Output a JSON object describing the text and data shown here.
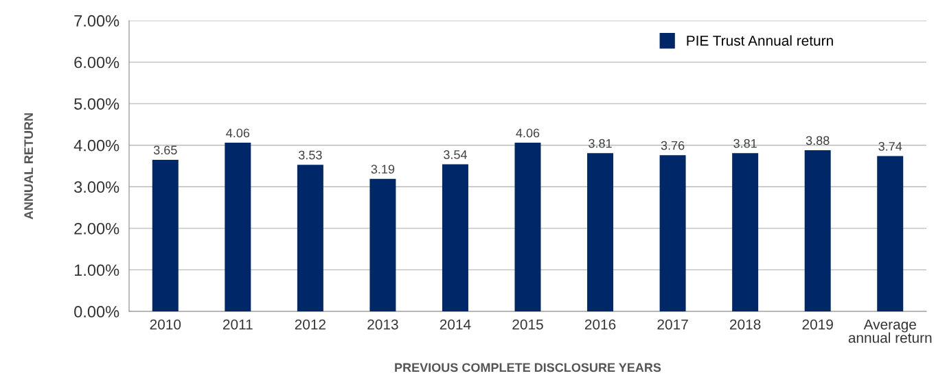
{
  "chart_data": {
    "type": "bar",
    "xlabel": "PREVIOUS COMPLETE DISCLOSURE YEARS",
    "ylabel": "ANNUAL RETURN",
    "categories": [
      "2010",
      "2011",
      "2012",
      "2013",
      "2014",
      "2015",
      "2016",
      "2017",
      "2018",
      "2019",
      "Average\nannual return"
    ],
    "series": [
      {
        "name": "PIE Trust Annual return",
        "color": "#002868",
        "values": [
          3.65,
          4.06,
          3.53,
          3.19,
          3.54,
          4.06,
          3.81,
          3.76,
          3.81,
          3.88,
          3.74
        ]
      }
    ],
    "data_labels": true,
    "ylim": [
      0,
      7
    ],
    "yticks": [
      {
        "value": 0,
        "label": "0.00%"
      },
      {
        "value": 1,
        "label": "1.00%"
      },
      {
        "value": 2,
        "label": "2.00%"
      },
      {
        "value": 3,
        "label": "3.00%"
      },
      {
        "value": 4,
        "label": "4.00%"
      },
      {
        "value": 5,
        "label": "5.00%"
      },
      {
        "value": 6,
        "label": "6.00%"
      },
      {
        "value": 7,
        "label": "7.00%"
      }
    ],
    "grid": "y",
    "legend": "top right"
  }
}
